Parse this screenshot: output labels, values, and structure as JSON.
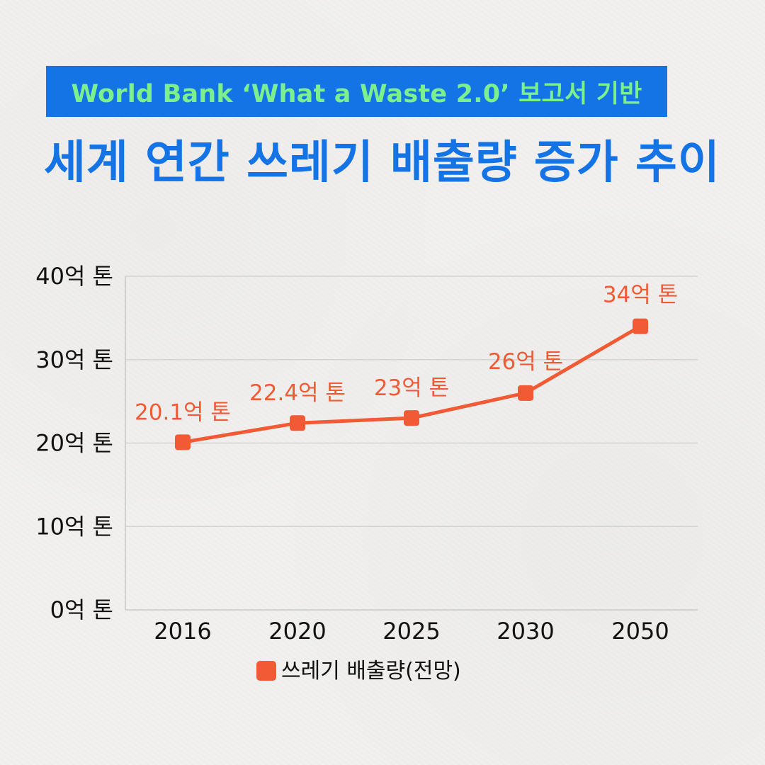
{
  "header": {
    "subtitle": "World Bank ‘What a Waste 2.0’ 보고서 기반",
    "title": "세계 연간 쓰레기 배출량 증가 추이"
  },
  "colors": {
    "title_blue": "#1474e6",
    "subtitle_green": "#7cf08e",
    "series_orange": "#f15a34"
  },
  "chart_data": {
    "type": "line",
    "categories": [
      "2016",
      "2020",
      "2025",
      "2030",
      "2050"
    ],
    "series": [
      {
        "name": "쓰레기 배출량(전망)",
        "values": [
          20.1,
          22.4,
          23,
          26,
          34
        ],
        "labels": [
          "20.1억 톤",
          "22.4억 톤",
          "23억 톤",
          "26억 톤",
          "34억 톤"
        ],
        "color": "#f15a34",
        "marker": "square"
      }
    ],
    "ylim": [
      0,
      40
    ],
    "yticks": [
      {
        "value": 0,
        "label": "0억 톤"
      },
      {
        "value": 10,
        "label": "10억 톤"
      },
      {
        "value": 20,
        "label": "20억 톤"
      },
      {
        "value": 30,
        "label": "30억 톤"
      },
      {
        "value": 40,
        "label": "40억 톤"
      }
    ],
    "grid": true,
    "legend": "bottom"
  }
}
